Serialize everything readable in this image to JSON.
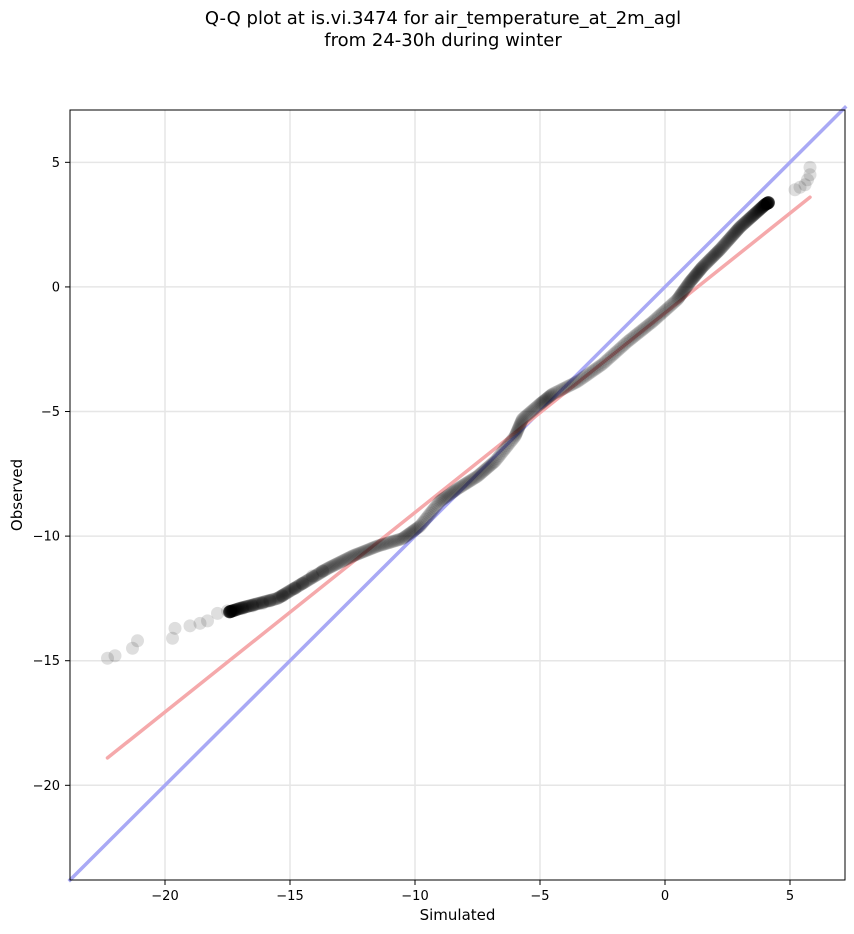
{
  "chart_data": {
    "type": "scatter",
    "title_line1": "Q-Q plot at is.vi.3474 for air_temperature_at_2m_agl",
    "title_line2": "from 24-30h during winter",
    "xlabel": "Simulated",
    "ylabel": "Observed",
    "xlim": [
      -23.8,
      7.2
    ],
    "ylim": [
      -23.8,
      7.1
    ],
    "xticks": [
      -20,
      -15,
      -10,
      -5,
      0,
      5
    ],
    "yticks": [
      -20,
      -15,
      -10,
      -5,
      0,
      5
    ],
    "xtick_labels": [
      "−20",
      "−15",
      "−10",
      "−5",
      "0",
      "5"
    ],
    "ytick_labels": [
      "−20",
      "−15",
      "−10",
      "−5",
      "0",
      "5"
    ],
    "grid": true,
    "reference_line": {
      "color": "#a9a9f5",
      "x": [
        -23.8,
        7.2
      ],
      "y": [
        -23.8,
        7.2
      ]
    },
    "fit_line": {
      "color": "#f5a9ab",
      "x": [
        -22.3,
        5.8
      ],
      "y": [
        -18.9,
        3.6
      ]
    },
    "point_color": "#000000",
    "qq_curve": [
      [
        -22.3,
        -14.9
      ],
      [
        -21.2,
        -14.4
      ],
      [
        -19.7,
        -13.8
      ],
      [
        -18.5,
        -13.4
      ],
      [
        -17.0,
        -12.9
      ],
      [
        -15.5,
        -12.5
      ],
      [
        -14.5,
        -11.9
      ],
      [
        -13.5,
        -11.3
      ],
      [
        -12.5,
        -10.8
      ],
      [
        -11.5,
        -10.4
      ],
      [
        -10.5,
        -10.1
      ],
      [
        -9.8,
        -9.6
      ],
      [
        -9.0,
        -8.6
      ],
      [
        -8.3,
        -8.1
      ],
      [
        -7.5,
        -7.6
      ],
      [
        -6.8,
        -7.0
      ],
      [
        -6.0,
        -6.0
      ],
      [
        -5.7,
        -5.3
      ],
      [
        -5.0,
        -4.7
      ],
      [
        -4.5,
        -4.3
      ],
      [
        -3.5,
        -3.8
      ],
      [
        -2.5,
        -3.1
      ],
      [
        -1.5,
        -2.2
      ],
      [
        -0.5,
        -1.4
      ],
      [
        0.5,
        -0.5
      ],
      [
        1.0,
        0.2
      ],
      [
        1.5,
        0.8
      ],
      [
        2.2,
        1.5
      ],
      [
        3.0,
        2.4
      ],
      [
        4.0,
        3.3
      ],
      [
        5.0,
        3.9
      ],
      [
        5.7,
        4.3
      ]
    ],
    "sparse_points": [
      [
        -22.3,
        -14.9
      ],
      [
        -22.0,
        -14.8
      ],
      [
        -21.3,
        -14.5
      ],
      [
        -21.1,
        -14.2
      ],
      [
        -19.7,
        -14.1
      ],
      [
        -19.6,
        -13.7
      ],
      [
        -19.0,
        -13.6
      ],
      [
        -18.6,
        -13.5
      ],
      [
        -18.3,
        -13.4
      ],
      [
        -17.9,
        -13.1
      ],
      [
        -17.5,
        -13.0
      ],
      [
        -16.9,
        -12.9
      ],
      [
        -16.5,
        -12.8
      ],
      [
        -16.1,
        -12.7
      ],
      [
        -15.8,
        -12.6
      ],
      [
        -15.3,
        -12.4
      ],
      [
        -14.8,
        -12.1
      ],
      [
        -14.5,
        -11.9
      ],
      [
        -14.1,
        -11.6
      ],
      [
        -13.7,
        -11.4
      ],
      [
        5.2,
        3.9
      ],
      [
        5.4,
        4.0
      ],
      [
        5.6,
        4.1
      ],
      [
        5.7,
        4.3
      ],
      [
        5.8,
        4.5
      ],
      [
        5.8,
        4.8
      ]
    ],
    "n_points": 620
  }
}
